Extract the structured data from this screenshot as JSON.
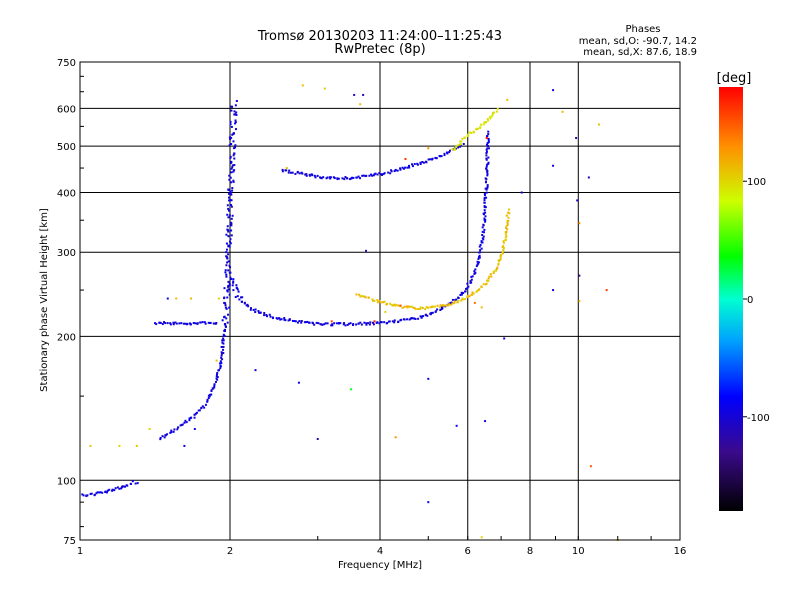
{
  "chart_data": {
    "type": "scatter",
    "title": "Tromsø 20130203 11:24:00–11:25:43",
    "subtitle": "RwPretec (8p)",
    "xlabel": "Frequency [MHz]",
    "ylabel": "Stationary phase Virtual Height [km]",
    "x_scale": "log",
    "y_scale": "log",
    "xlim": [
      1,
      16
    ],
    "ylim": [
      75,
      750
    ],
    "x_ticks": [
      1,
      2,
      4,
      6,
      8,
      10,
      16
    ],
    "x_tick_labels": [
      "1",
      "2",
      "4",
      "6",
      "8",
      "10",
      "16"
    ],
    "y_ticks": [
      75,
      100,
      200,
      300,
      400,
      500,
      600,
      750
    ],
    "y_tick_labels": [
      "75",
      "100",
      "200",
      "300",
      "400",
      "500",
      "600",
      "750"
    ],
    "grid": true,
    "stats": {
      "header": "Phases",
      "line_o": "mean, sd,O: -90.7, 14.2",
      "line_x": "mean, sd,X:  87.6, 18.9"
    },
    "colorbar": {
      "label": "[deg]",
      "range": [
        -180,
        180
      ],
      "ticks": [
        100,
        0,
        -100
      ],
      "tick_labels": [
        "100",
        "0",
        "-100"
      ]
    },
    "traces": [
      {
        "type": "line_pts",
        "phase": -95,
        "f": [
          1.01,
          1.04,
          1.08,
          1.11,
          1.15,
          1.18,
          1.22,
          1.25,
          1.28,
          1.31
        ],
        "h": [
          93,
          93,
          94,
          94,
          95,
          96,
          97,
          98,
          99,
          98
        ]
      },
      {
        "type": "line_pts",
        "phase": -95,
        "f": [
          1.42,
          1.45,
          1.5,
          1.55,
          1.62,
          1.7,
          1.78,
          1.85,
          1.9
        ],
        "h": [
          212,
          213,
          213,
          213,
          213,
          213,
          213,
          213,
          212
        ]
      },
      {
        "type": "line_pts",
        "phase": -95,
        "f": [
          1.45,
          1.5,
          1.56,
          1.62,
          1.68,
          1.74,
          1.8,
          1.85,
          1.89,
          1.92,
          1.94,
          1.96,
          1.97,
          1.98,
          1.99,
          2.0,
          2.01,
          2.02,
          2.03,
          2.04
        ],
        "h": [
          122,
          125,
          128,
          132,
          135,
          140,
          146,
          155,
          165,
          178,
          195,
          215,
          240,
          270,
          310,
          360,
          420,
          480,
          540,
          620
        ]
      },
      {
        "type": "line_pts",
        "phase": -95,
        "f": [
          2.02,
          2.05,
          2.1,
          2.18,
          2.3,
          2.45,
          2.65,
          2.9,
          3.2,
          3.5,
          3.9,
          4.3,
          4.7,
          5.0,
          5.3,
          5.6,
          5.9,
          6.1,
          6.3,
          6.45,
          6.55,
          6.6
        ],
        "h": [
          268,
          250,
          238,
          230,
          224,
          219,
          216,
          213,
          212,
          212,
          213,
          215,
          218,
          222,
          228,
          236,
          248,
          262,
          285,
          330,
          420,
          540
        ]
      },
      {
        "type": "line_pts",
        "phase": -95,
        "f": [
          2.55,
          2.7,
          2.9,
          3.05,
          3.3,
          3.6,
          3.9,
          4.2,
          4.5,
          4.8,
          5.1,
          5.4,
          5.7,
          5.9
        ],
        "h": [
          445,
          440,
          435,
          430,
          428,
          430,
          435,
          442,
          450,
          460,
          470,
          482,
          495,
          510
        ]
      },
      {
        "type": "line_pts",
        "phase": 110,
        "f": [
          3.6,
          3.9,
          4.2,
          4.5,
          4.8,
          5.1,
          5.4,
          5.7,
          6.0,
          6.3,
          6.6,
          6.9,
          7.1,
          7.25
        ],
        "h": [
          245,
          238,
          233,
          230,
          229,
          230,
          232,
          236,
          242,
          250,
          262,
          280,
          310,
          370
        ]
      },
      {
        "type": "line_pts",
        "phase": 95,
        "f": [
          5.6,
          5.75,
          5.9,
          6.3,
          6.5,
          6.7,
          6.9
        ],
        "h": [
          490,
          500,
          520,
          545,
          560,
          580,
          600
        ]
      }
    ],
    "scatter": [
      {
        "f": 1.05,
        "h": 118,
        "phase": 105
      },
      {
        "f": 1.2,
        "h": 118,
        "phase": 100
      },
      {
        "f": 1.3,
        "h": 118,
        "phase": 110
      },
      {
        "f": 1.38,
        "h": 128,
        "phase": 100
      },
      {
        "f": 1.5,
        "h": 240,
        "phase": -95
      },
      {
        "f": 1.56,
        "h": 240,
        "phase": 110
      },
      {
        "f": 1.67,
        "h": 240,
        "phase": 110
      },
      {
        "f": 1.88,
        "h": 178,
        "phase": 110
      },
      {
        "f": 1.9,
        "h": 240,
        "phase": 100
      },
      {
        "f": 1.62,
        "h": 118,
        "phase": -95
      },
      {
        "f": 1.7,
        "h": 128,
        "phase": -95
      },
      {
        "f": 2.6,
        "h": 450,
        "phase": 110
      },
      {
        "f": 2.8,
        "h": 670,
        "phase": 110
      },
      {
        "f": 3.1,
        "h": 660,
        "phase": 105
      },
      {
        "f": 3.55,
        "h": 640,
        "phase": -110
      },
      {
        "f": 3.7,
        "h": 640,
        "phase": -110
      },
      {
        "f": 3.65,
        "h": 612,
        "phase": 110
      },
      {
        "f": 3.75,
        "h": 302,
        "phase": -120
      },
      {
        "f": 2.25,
        "h": 170,
        "phase": -95
      },
      {
        "f": 2.75,
        "h": 160,
        "phase": -95
      },
      {
        "f": 3.0,
        "h": 122,
        "phase": -120
      },
      {
        "f": 3.5,
        "h": 155,
        "phase": 30
      },
      {
        "f": 4.3,
        "h": 123,
        "phase": 130
      },
      {
        "f": 5.0,
        "h": 163,
        "phase": -95
      },
      {
        "f": 5.0,
        "h": 90,
        "phase": -95
      },
      {
        "f": 5.7,
        "h": 130,
        "phase": -95
      },
      {
        "f": 6.5,
        "h": 133,
        "phase": -95
      },
      {
        "f": 6.4,
        "h": 76,
        "phase": 100
      },
      {
        "f": 7.1,
        "h": 198,
        "phase": -95
      },
      {
        "f": 7.2,
        "h": 625,
        "phase": 110
      },
      {
        "f": 7.7,
        "h": 400,
        "phase": -95
      },
      {
        "f": 8.9,
        "h": 655,
        "phase": -95
      },
      {
        "f": 8.9,
        "h": 455,
        "phase": -95
      },
      {
        "f": 8.9,
        "h": 250,
        "phase": -95
      },
      {
        "f": 9.3,
        "h": 590,
        "phase": 110
      },
      {
        "f": 9.9,
        "h": 520,
        "phase": -110
      },
      {
        "f": 9.95,
        "h": 385,
        "phase": -100
      },
      {
        "f": 10.05,
        "h": 268,
        "phase": -130
      },
      {
        "f": 10.05,
        "h": 345,
        "phase": 130
      },
      {
        "f": 10.05,
        "h": 237,
        "phase": 110
      },
      {
        "f": 10.5,
        "h": 430,
        "phase": -110
      },
      {
        "f": 10.6,
        "h": 107,
        "phase": 150
      },
      {
        "f": 11.0,
        "h": 555,
        "phase": 110
      },
      {
        "f": 11.4,
        "h": 250,
        "phase": 160
      },
      {
        "f": 12.0,
        "h": 75,
        "phase": 110
      },
      {
        "f": 4.5,
        "h": 470,
        "phase": 160
      },
      {
        "f": 5.0,
        "h": 495,
        "phase": 130
      },
      {
        "f": 6.55,
        "h": 520,
        "phase": 175
      },
      {
        "f": 6.4,
        "h": 230,
        "phase": 110
      },
      {
        "f": 6.2,
        "h": 235,
        "phase": 140
      },
      {
        "f": 3.2,
        "h": 215,
        "phase": 160
      },
      {
        "f": 3.9,
        "h": 215,
        "phase": 170
      },
      {
        "f": 4.1,
        "h": 225,
        "phase": 100
      },
      {
        "f": 4.4,
        "h": 232,
        "phase": 150
      },
      {
        "f": 5.3,
        "h": 232,
        "phase": 110
      }
    ]
  }
}
